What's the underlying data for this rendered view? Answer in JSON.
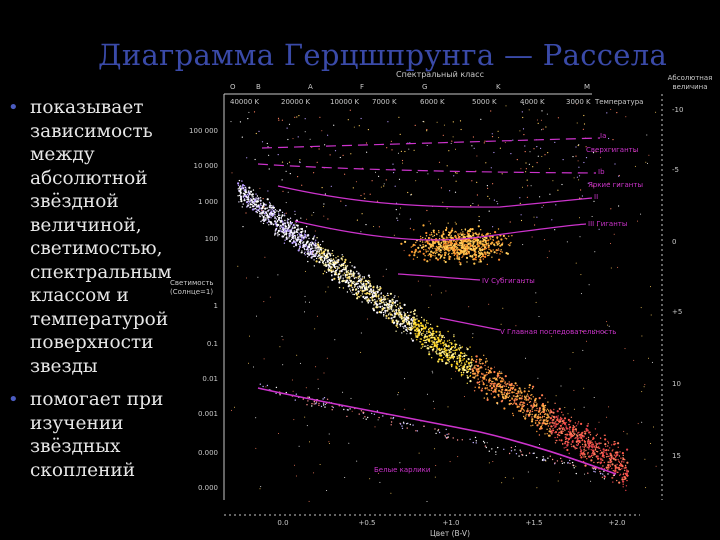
{
  "slide": {
    "title": "Диаграмма Герцшпрунга — Рассела",
    "bullets": [
      {
        "lines": [
          "показывает",
          "зависимость",
          "между",
          "абсолютной",
          "звёздной",
          "величиной,",
          "светимостью,",
          "спектральным",
          "классом и",
          "температурой",
          "поверхности",
          "звезды"
        ]
      },
      {
        "lines": [
          "помогает при",
          "изучении",
          "звёздных",
          "скоплений"
        ]
      }
    ]
  },
  "diagram": {
    "spectral_class_label": "Спектральный класс",
    "abs_mag_label_line1": "Абсолютная",
    "abs_mag_label_line2": "величина",
    "temperature_label": "Температура",
    "luminosity_label_line1": "Светимость",
    "luminosity_label_line2": "(Солнце=1)",
    "color_index_label": "Цвет (B-V)",
    "spectral_classes": [
      "O",
      "B",
      "A",
      "F",
      "G",
      "K",
      "M"
    ],
    "temperatures": [
      "40000 K",
      "20000 K",
      "10000 K",
      "7000 K",
      "6000 K",
      "5000 K",
      "4000 K",
      "3000 K"
    ],
    "luminosity_ticks": [
      "100 000",
      "10 000",
      "1 000",
      "100",
      "1",
      "0.1",
      "0.01",
      "0.001",
      "0.000",
      "0.000"
    ],
    "abs_mag_ticks": [
      "-10",
      "-5",
      "0",
      "+5",
      "10",
      "15"
    ],
    "color_ticks": [
      "0.0",
      "+0.5",
      "+1.0",
      "+1.5",
      "+2.0"
    ],
    "regions": {
      "supergiants_ia": "Ia",
      "supergiants_label": "Сверхгиганты",
      "bright_giants_ib": "Ib",
      "bright_giants_label": "Яркие гиганты",
      "giants_ii": "II",
      "giants_label": "III  Гиганты",
      "subgiants_label": "IV  Субгиганты",
      "main_sequence_label": "V  Главная последовательность",
      "white_dwarfs_label": "Белые карлики"
    },
    "colors": {
      "accent": "#cc33cc",
      "bullet_dot": "#4b5cc0",
      "title": "#3a4aa8",
      "axis": "#c9c9c9"
    }
  }
}
